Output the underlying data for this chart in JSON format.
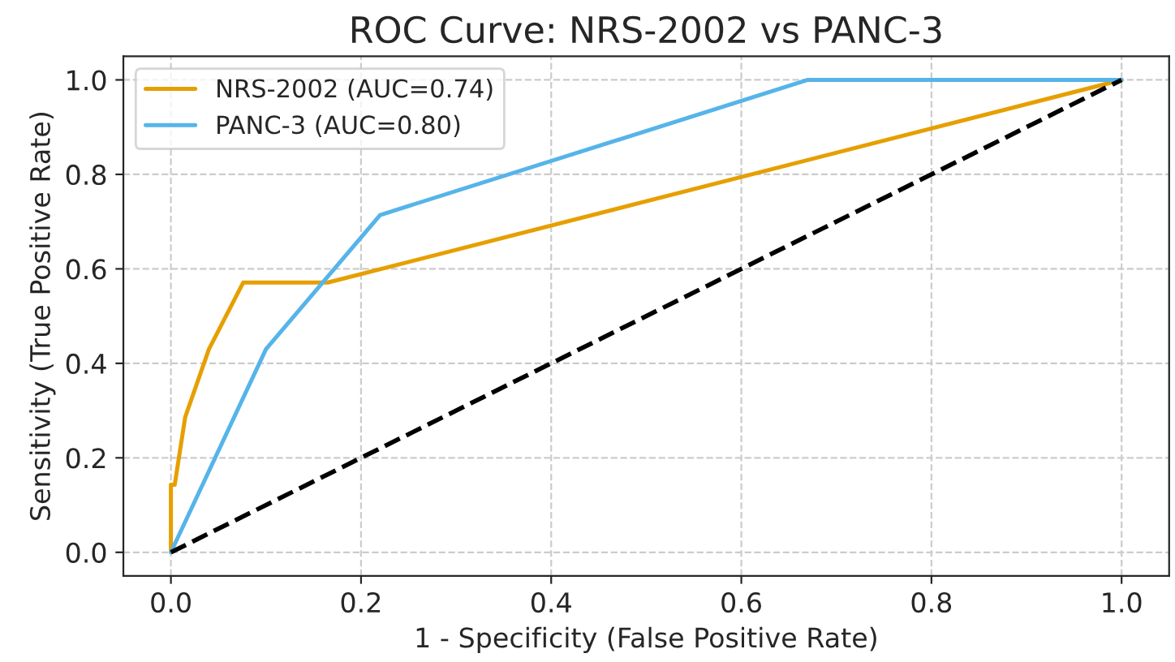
{
  "chart_data": {
    "type": "line",
    "title": "ROC Curve: NRS-2002 vs PANC-3",
    "xlabel": "1 - Specificity (False Positive Rate)",
    "ylabel": "Sensitivity (True Positive Rate)",
    "series": [
      {
        "name": "NRS-2002 (AUC=0.74)",
        "color": "#e69f00",
        "x": [
          0,
          0,
          0.004,
          0.015,
          0.04,
          0.076,
          0.165,
          1
        ],
        "values": [
          0,
          0.143,
          0.143,
          0.286,
          0.43,
          0.571,
          0.571,
          1
        ]
      },
      {
        "name": "PANC-3 (AUC=0.80)",
        "color": "#56b4e9",
        "x": [
          0,
          0.1,
          0.22,
          0.67,
          1
        ],
        "values": [
          0,
          0.43,
          0.714,
          1,
          1
        ]
      },
      {
        "color": "#000000",
        "line_style": "dashed",
        "x": [
          0,
          1
        ],
        "values": [
          0,
          1
        ]
      }
    ],
    "xlim": [
      -0.05,
      1.05
    ],
    "ylim": [
      -0.05,
      1.05
    ],
    "xticks": [
      {
        "value": 0,
        "label": "0.0"
      },
      {
        "value": 0.2,
        "label": "0.2"
      },
      {
        "value": 0.4,
        "label": "0.4"
      },
      {
        "value": 0.6,
        "label": "0.6"
      },
      {
        "value": 0.8,
        "label": "0.8"
      },
      {
        "value": 1,
        "label": "1.0"
      }
    ],
    "yticks": [
      {
        "value": 0,
        "label": "0.0"
      },
      {
        "value": 0.2,
        "label": "0.2"
      },
      {
        "value": 0.4,
        "label": "0.4"
      },
      {
        "value": 0.6,
        "label": "0.6"
      },
      {
        "value": 0.8,
        "label": "0.8"
      },
      {
        "value": 1,
        "label": "1.0"
      }
    ],
    "grid": true,
    "legend": "top left"
  }
}
